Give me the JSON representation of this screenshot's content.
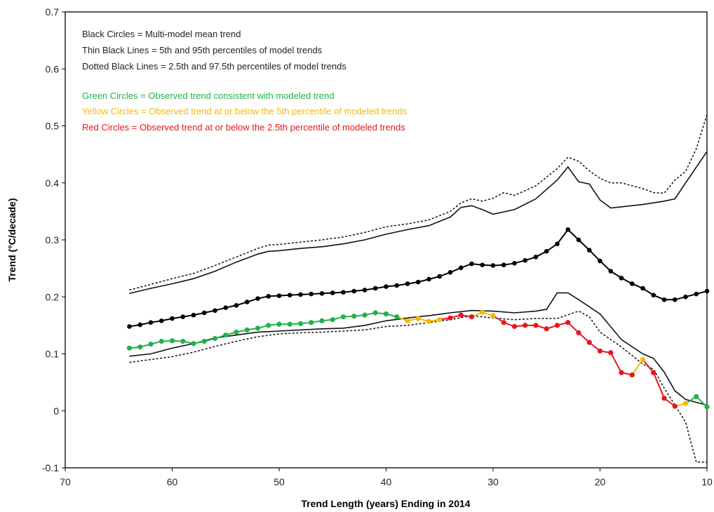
{
  "chart_data": {
    "type": "line",
    "xlabel": "Trend Length (years) Ending in 2014",
    "ylabel": "Trend (°C/decade)",
    "xlim": [
      70,
      10
    ],
    "ylim": [
      -0.1,
      0.7
    ],
    "x_reversed": true,
    "x_ticks": [
      "70",
      "60",
      "50",
      "40",
      "30",
      "20",
      "10"
    ],
    "y_ticks": [
      "-0.1",
      "0",
      "0.1",
      "0.2",
      "0.3",
      "0.4",
      "0.5",
      "0.6",
      "0.7"
    ],
    "grid": false,
    "legend_lines": [
      {
        "text": "Black Circles = Multi-model mean trend",
        "color": "#222222"
      },
      {
        "text": "Thin Black Lines = 5th and 95th percentiles of model trends",
        "color": "#222222"
      },
      {
        "text": "Dotted Black Lines = 2.5th and 97.5th percentiles of model trends",
        "color": "#222222"
      },
      {
        "text": "Green Circles = Observed trend consistent with modeled trend",
        "color": "#22b14c"
      },
      {
        "text": "Yellow Circles = Observed trend at or below the 5th percentile of modeled trends",
        "color": "#f5b800"
      },
      {
        "text": "Red Circles = Observed trend at or below the 2.5th percentile of modeled trends",
        "color": "#e8141e"
      }
    ],
    "legend_placement": "top-left",
    "colors": {
      "mean": "#000000",
      "green": "#22b14c",
      "yellow": "#f5b800",
      "red": "#e8141e"
    },
    "series_p95": {
      "x": [
        64,
        62,
        60,
        58,
        56,
        54,
        52,
        51,
        50,
        48,
        46,
        44,
        42,
        40,
        38,
        36,
        34,
        33,
        32,
        31,
        30,
        28,
        26,
        24,
        23,
        22,
        21,
        20,
        19,
        18,
        16,
        14,
        13,
        12,
        10
      ],
      "values": [
        0.206,
        0.215,
        0.223,
        0.232,
        0.245,
        0.261,
        0.275,
        0.28,
        0.281,
        0.285,
        0.288,
        0.293,
        0.3,
        0.31,
        0.318,
        0.325,
        0.34,
        0.357,
        0.36,
        0.353,
        0.345,
        0.353,
        0.372,
        0.405,
        0.428,
        0.402,
        0.398,
        0.37,
        0.356,
        0.358,
        0.362,
        0.368,
        0.372,
        0.4,
        0.455
      ]
    },
    "series_p975": {
      "x": [
        64,
        62,
        60,
        58,
        56,
        54,
        52,
        51,
        50,
        48,
        46,
        44,
        42,
        40,
        38,
        36,
        34,
        33,
        32,
        31,
        30,
        29,
        28,
        26,
        24,
        23,
        22,
        21,
        20,
        19,
        18,
        16,
        15,
        14,
        13,
        12,
        11,
        10
      ],
      "values": [
        0.212,
        0.222,
        0.232,
        0.241,
        0.255,
        0.27,
        0.285,
        0.291,
        0.292,
        0.296,
        0.3,
        0.305,
        0.313,
        0.323,
        0.328,
        0.335,
        0.35,
        0.365,
        0.372,
        0.368,
        0.373,
        0.383,
        0.378,
        0.395,
        0.425,
        0.445,
        0.438,
        0.421,
        0.408,
        0.4,
        0.4,
        0.39,
        0.383,
        0.382,
        0.405,
        0.42,
        0.46,
        0.52
      ]
    },
    "series_p5": {
      "x": [
        64,
        62,
        60,
        58,
        56,
        54,
        52,
        50,
        48,
        46,
        44,
        42,
        40,
        38,
        36,
        34,
        32,
        30,
        28,
        26,
        25,
        24,
        23,
        22,
        20,
        18,
        16,
        15,
        14,
        13,
        12,
        11,
        10
      ],
      "values": [
        0.096,
        0.1,
        0.11,
        0.118,
        0.128,
        0.133,
        0.138,
        0.14,
        0.142,
        0.144,
        0.145,
        0.15,
        0.158,
        0.163,
        0.167,
        0.172,
        0.176,
        0.175,
        0.172,
        0.175,
        0.178,
        0.207,
        0.207,
        0.195,
        0.17,
        0.125,
        0.1,
        0.092,
        0.068,
        0.035,
        0.02,
        0.015,
        0.01
      ]
    },
    "series_p25": {
      "x": [
        64,
        62,
        60,
        58,
        56,
        54,
        52,
        50,
        48,
        46,
        44,
        42,
        40,
        38,
        36,
        34,
        32,
        30,
        28,
        26,
        24,
        22,
        21,
        20,
        18,
        16,
        15,
        14,
        13,
        12,
        11,
        10
      ],
      "values": [
        0.085,
        0.09,
        0.095,
        0.103,
        0.113,
        0.122,
        0.13,
        0.135,
        0.137,
        0.138,
        0.14,
        0.142,
        0.148,
        0.15,
        0.155,
        0.16,
        0.167,
        0.163,
        0.16,
        0.162,
        0.162,
        0.175,
        0.165,
        0.138,
        0.112,
        0.082,
        0.073,
        0.04,
        0.01,
        -0.02,
        -0.09,
        -0.09
      ]
    },
    "series_mean": {
      "x": [
        64,
        63,
        62,
        61,
        60,
        59,
        58,
        57,
        56,
        55,
        54,
        53,
        52,
        51,
        50,
        49,
        48,
        47,
        46,
        45,
        44,
        43,
        42,
        41,
        40,
        39,
        38,
        37,
        36,
        35,
        34,
        33,
        32,
        31,
        30,
        29,
        28,
        27,
        26,
        25,
        24,
        23,
        22,
        21,
        20,
        19,
        18,
        17,
        16,
        15,
        14,
        13,
        12,
        11,
        10
      ],
      "values": [
        0.148,
        0.151,
        0.155,
        0.158,
        0.162,
        0.165,
        0.168,
        0.172,
        0.176,
        0.181,
        0.185,
        0.191,
        0.197,
        0.201,
        0.202,
        0.203,
        0.204,
        0.205,
        0.206,
        0.207,
        0.208,
        0.21,
        0.212,
        0.215,
        0.218,
        0.22,
        0.223,
        0.226,
        0.231,
        0.236,
        0.243,
        0.251,
        0.258,
        0.256,
        0.255,
        0.256,
        0.259,
        0.264,
        0.27,
        0.28,
        0.293,
        0.318,
        0.3,
        0.282,
        0.263,
        0.245,
        0.233,
        0.223,
        0.215,
        0.203,
        0.195,
        0.195,
        0.2,
        0.205,
        0.21
      ]
    },
    "series_observed": {
      "x": [
        64,
        63,
        62,
        61,
        60,
        59,
        58,
        57,
        56,
        55,
        54,
        53,
        52,
        51,
        50,
        49,
        48,
        47,
        46,
        45,
        44,
        43,
        42,
        41,
        40,
        39,
        38,
        37,
        36,
        35,
        34,
        33,
        32,
        31,
        30,
        29,
        28,
        27,
        26,
        25,
        24,
        23,
        22,
        21,
        20,
        19,
        18,
        17,
        16,
        15,
        14,
        13,
        12,
        11,
        10
      ],
      "values": [
        0.11,
        0.112,
        0.117,
        0.122,
        0.123,
        0.122,
        0.118,
        0.122,
        0.127,
        0.133,
        0.138,
        0.142,
        0.145,
        0.15,
        0.152,
        0.152,
        0.153,
        0.155,
        0.158,
        0.16,
        0.165,
        0.166,
        0.168,
        0.172,
        0.17,
        0.165,
        0.158,
        0.162,
        0.157,
        0.16,
        0.163,
        0.168,
        0.165,
        0.173,
        0.167,
        0.155,
        0.148,
        0.15,
        0.15,
        0.144,
        0.15,
        0.155,
        0.137,
        0.12,
        0.105,
        0.102,
        0.067,
        0.063,
        0.09,
        0.067,
        0.022,
        0.008,
        0.013,
        0.025,
        0.007
      ],
      "status": [
        "green",
        "green",
        "green",
        "green",
        "green",
        "green",
        "green",
        "green",
        "green",
        "green",
        "green",
        "green",
        "green",
        "green",
        "green",
        "green",
        "green",
        "green",
        "green",
        "green",
        "green",
        "green",
        "green",
        "green",
        "green",
        "green",
        "yellow",
        "yellow",
        "yellow",
        "yellow",
        "red",
        "red",
        "red",
        "yellow",
        "yellow",
        "red",
        "red",
        "red",
        "red",
        "red",
        "red",
        "red",
        "red",
        "red",
        "red",
        "red",
        "red",
        "red",
        "yellow",
        "red",
        "red",
        "red",
        "yellow",
        "green",
        "green"
      ]
    }
  }
}
